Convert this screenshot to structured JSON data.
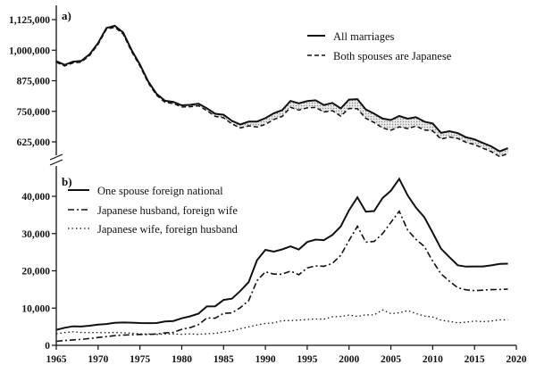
{
  "chart_data": [
    {
      "type": "line",
      "panel_label": "a)",
      "title": "",
      "xlabel": "",
      "ylabel": "",
      "ylim": [
        600000,
        1150000
      ],
      "yticks": [
        {
          "value": 625000,
          "label": "625,000"
        },
        {
          "value": 750000,
          "label": "750,000"
        },
        {
          "value": 875000,
          "label": "875,000"
        },
        {
          "value": 1000000,
          "label": "1,000,000"
        },
        {
          "value": 1125000,
          "label": "1,125,000"
        }
      ],
      "legend_position": "top-right",
      "shaded_between_series": true,
      "x": [
        1965,
        1966,
        1967,
        1968,
        1969,
        1970,
        1971,
        1972,
        1973,
        1974,
        1975,
        1976,
        1977,
        1978,
        1979,
        1980,
        1981,
        1982,
        1983,
        1984,
        1985,
        1986,
        1987,
        1988,
        1989,
        1990,
        1991,
        1992,
        1993,
        1994,
        1995,
        1996,
        1997,
        1998,
        1999,
        2000,
        2001,
        2002,
        2003,
        2004,
        2005,
        2006,
        2007,
        2008,
        2009,
        2010,
        2011,
        2012,
        2013,
        2014,
        2015,
        2016,
        2017,
        2018,
        2019
      ],
      "series": [
        {
          "name": "All marriages",
          "style": "solid",
          "values": [
            954852,
            940120,
            953096,
            956312,
            984142,
            1029405,
            1091229,
            1099984,
            1071923,
            1000455,
            941628,
            871543,
            821029,
            793257,
            788505,
            774702,
            776531,
            781252,
            762552,
            739991,
            735850,
            710962,
            696173,
            707716,
            708316,
            722138,
            742264,
            754441,
            792658,
            782738,
            791888,
            795080,
            775651,
            784595,
            762028,
            798138,
            799999,
            757331,
            740191,
            720417,
            714265,
            730971,
            719822,
            726106,
            707734,
            700214,
            661895,
            668869,
            660613,
            643749,
            635156,
            620531,
            606866,
            586481,
            599007
          ]
        },
        {
          "name": "Both spouses are Japanese",
          "style": "dashed",
          "values": [
            950696,
            935404,
            947995,
            951258,
            978874,
            1023867,
            1085501,
            1093925,
            1065801,
            994362,
            935637,
            865585,
            815050,
            786868,
            781963,
            767693,
            768919,
            772823,
            753097,
            729497,
            723669,
            698271,
            681932,
            690553,
            685562,
            696512,
            716514,
            729060,
            766403,
            754758,
            764161,
            766040,
            747372,
            752594,
            730236,
            761875,
            760273,
            721452,
            704152,
            681967,
            672784,
            686270,
            679556,
            689443,
            673782,
            670007,
            636244,
            645212,
            638956,
            622788,
            614009,
            599436,
            585215,
            564878,
            577105
          ]
        }
      ]
    },
    {
      "type": "line",
      "panel_label": "b)",
      "title": "",
      "xlabel": "",
      "ylabel": "",
      "ylim": [
        0,
        47000
      ],
      "yticks": [
        {
          "value": 0,
          "label": "0"
        },
        {
          "value": 10000,
          "label": "10,000"
        },
        {
          "value": 20000,
          "label": "20,000"
        },
        {
          "value": 30000,
          "label": "30,000"
        },
        {
          "value": 40000,
          "label": "40,000"
        }
      ],
      "xlim": [
        1965,
        2020
      ],
      "xticks": [
        1965,
        1970,
        1975,
        1980,
        1985,
        1990,
        1995,
        2000,
        2005,
        2010,
        2015,
        2020
      ],
      "legend_position": "top-left",
      "x": [
        1965,
        1966,
        1967,
        1968,
        1969,
        1970,
        1971,
        1972,
        1973,
        1974,
        1975,
        1976,
        1977,
        1978,
        1979,
        1980,
        1981,
        1982,
        1983,
        1984,
        1985,
        1986,
        1987,
        1988,
        1989,
        1990,
        1991,
        1992,
        1993,
        1994,
        1995,
        1996,
        1997,
        1998,
        1999,
        2000,
        2001,
        2002,
        2003,
        2004,
        2005,
        2006,
        2007,
        2008,
        2009,
        2010,
        2011,
        2012,
        2013,
        2014,
        2015,
        2016,
        2017,
        2018,
        2019
      ],
      "series": [
        {
          "name": "One spouse foreign national",
          "style": "solid",
          "values": [
            4156,
            4716,
            5101,
            5054,
            5268,
            5546,
            5728,
            6059,
            6122,
            6093,
            5991,
            5958,
            5979,
            6389,
            6542,
            7261,
            7792,
            8510,
            10448,
            10494,
            12181,
            12529,
            14582,
            16992,
            22843,
            25626,
            25159,
            25740,
            26565,
            25725,
            27727,
            28372,
            28251,
            29636,
            31900,
            36263,
            39727,
            35879,
            36039,
            39511,
            41481,
            44701,
            40272,
            36969,
            34393,
            30207,
            25934,
            23657,
            21488,
            21130,
            21180,
            21180,
            21457,
            21852,
            21919
          ]
        },
        {
          "name": "Japanese husband, foreign wife",
          "style": "dashdot",
          "values": [
            1067,
            1296,
            1461,
            1598,
            1835,
            2108,
            2346,
            2612,
            2764,
            2819,
            2913,
            2928,
            3052,
            3336,
            3488,
            4305,
            4734,
            5563,
            7323,
            7274,
            8588,
            8703,
            10115,
            12028,
            17371,
            19728,
            19119,
            19094,
            19919,
            18950,
            20787,
            21306,
            21221,
            21982,
            24143,
            28141,
            31967,
            27681,
            27883,
            29992,
            32981,
            35993,
            30954,
            28446,
            26535,
            22580,
            19176,
            17206,
            15451,
            14900,
            14677,
            14809,
            14946,
            15002,
            15100
          ]
        },
        {
          "name": "Japanese wife, foreign husband",
          "style": "dotted",
          "values": [
            3089,
            3420,
            3640,
            3456,
            3433,
            3438,
            3382,
            3447,
            3358,
            3274,
            3078,
            3030,
            2927,
            3053,
            3054,
            2956,
            3058,
            2947,
            3125,
            3220,
            3593,
            3826,
            4467,
            4964,
            5472,
            5898,
            6040,
            6646,
            6646,
            6775,
            6940,
            7066,
            7030,
            7654,
            7757,
            8122,
            7760,
            8198,
            8156,
            9519,
            8500,
            8708,
            9318,
            8523,
            7858,
            7627,
            6758,
            6451,
            6037,
            6230,
            6503,
            6371,
            6511,
            6850,
            6819
          ]
        }
      ]
    }
  ]
}
